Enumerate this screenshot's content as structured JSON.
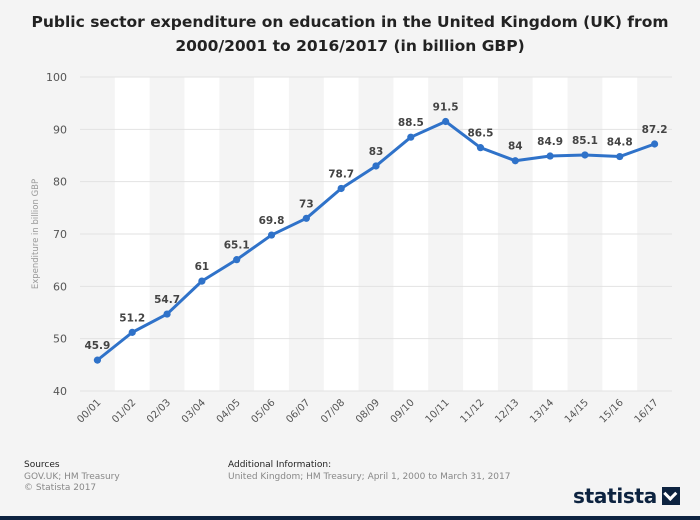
{
  "chart_data": {
    "type": "line",
    "title_line1": "Public sector expenditure on education in the United Kingdom (UK) from",
    "title_line2": "2000/2001 to 2016/2017 (in billion GBP)",
    "ylabel": "Expenditure in billion GBP",
    "xlabel": "",
    "categories": [
      "00/01",
      "01/02",
      "02/03",
      "03/04",
      "04/05",
      "05/06",
      "06/07",
      "07/08",
      "08/09",
      "09/10",
      "10/11",
      "11/12",
      "12/13",
      "13/14",
      "14/15",
      "15/16",
      "16/17"
    ],
    "values": [
      45.9,
      51.2,
      54.7,
      61,
      65.1,
      69.8,
      73,
      78.7,
      83,
      88.5,
      91.5,
      86.5,
      84,
      84.9,
      85.1,
      84.8,
      87.2
    ],
    "value_labels": [
      "45.9",
      "51.2",
      "54.7",
      "61",
      "65.1",
      "69.8",
      "73",
      "78.7",
      "83",
      "88.5",
      "91.5",
      "86.5",
      "84",
      "84.9",
      "85.1",
      "84.8",
      "87.2"
    ],
    "ylim": [
      40,
      100
    ],
    "yticks": [
      40,
      50,
      60,
      70,
      80,
      90,
      100
    ],
    "grid": true,
    "legend": "none",
    "line_color": "#2f72c9"
  },
  "footer": {
    "sources_heading": "Sources",
    "sources_line1": "GOV.UK; HM Treasury",
    "sources_line2": "© Statista 2017",
    "info_heading": "Additional Information:",
    "info_line1": "United Kingdom; HM Treasury; April 1, 2000 to March 31, 2017"
  },
  "brand": {
    "name": "statista"
  }
}
